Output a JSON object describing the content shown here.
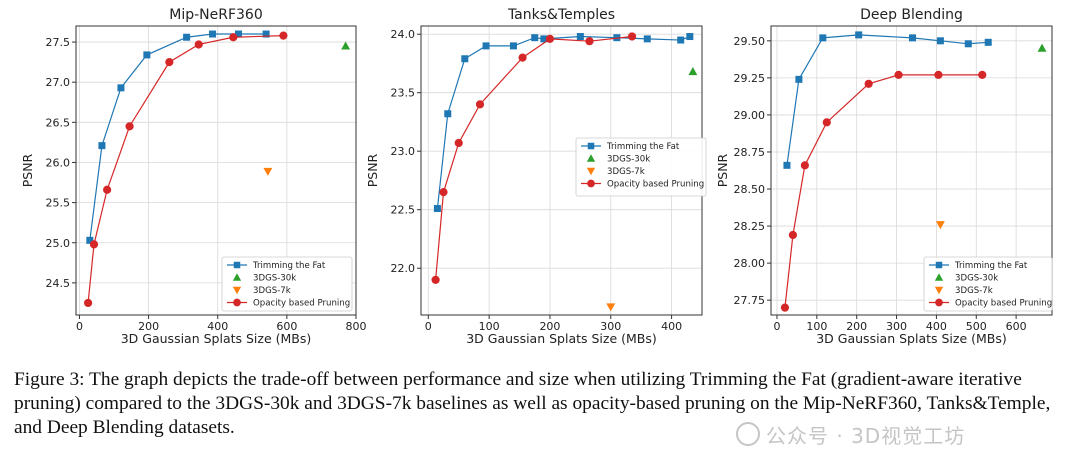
{
  "figure_caption": "Figure 3: The graph depicts the trade-off between performance and size when utilizing Trimming the Fat (gradient-aware iterative pruning) compared to the 3DGS-30k and 3DGS-7k baselines as well as opacity-based pruning on the Mip-NeRF360, Tanks&Temple, and Deep Blending datasets.",
  "watermark_text": "公众号 · 3D视觉工坊",
  "series_styles": {
    "Trimming the Fat": {
      "color": "#1f77b4",
      "marker": "square",
      "line": true
    },
    "3DGS-30k": {
      "color": "#2ca02c",
      "marker": "triangle-up",
      "line": false
    },
    "3DGS-7k": {
      "color": "#ff7f0e",
      "marker": "triangle-down",
      "line": false
    },
    "Opacity based Pruning": {
      "color": "#d62728",
      "marker": "circle",
      "line": true
    }
  },
  "chart_data": [
    {
      "type": "line",
      "title": "Mip-NeRF360",
      "xlabel": "3D Gaussian Splats Size (MBs)",
      "ylabel": "PSNR",
      "xlim": [
        -10,
        800
      ],
      "ylim": [
        24.1,
        27.7
      ],
      "xticks": [
        0,
        200,
        400,
        600,
        800
      ],
      "yticks": [
        24.5,
        25.0,
        25.5,
        26.0,
        26.5,
        27.0,
        27.5
      ],
      "ytick_labels": [
        "24.5",
        "25.0",
        "25.5",
        "26.0",
        "26.5",
        "27.0",
        "27.5"
      ],
      "grid": true,
      "legend_position": "bottom-right",
      "series": [
        {
          "name": "Trimming the Fat",
          "x": [
            30,
            65,
            120,
            195,
            310,
            385,
            460,
            540
          ],
          "y": [
            25.03,
            26.21,
            26.93,
            27.34,
            27.56,
            27.6,
            27.6,
            27.6
          ]
        },
        {
          "name": "3DGS-30k",
          "x": [
            770
          ],
          "y": [
            27.45
          ]
        },
        {
          "name": "3DGS-7k",
          "x": [
            545
          ],
          "y": [
            25.89
          ]
        },
        {
          "name": "Opacity based Pruning",
          "x": [
            25,
            42,
            80,
            145,
            260,
            345,
            445,
            590
          ],
          "y": [
            24.25,
            24.98,
            25.66,
            26.45,
            27.25,
            27.47,
            27.56,
            27.58
          ]
        }
      ]
    },
    {
      "type": "line",
      "title": "Tanks&Temples",
      "xlabel": "3D Gaussian Splats Size (MBs)",
      "ylabel": "PSNR",
      "xlim": [
        -12,
        450
      ],
      "ylim": [
        21.6,
        24.07
      ],
      "xticks": [
        0,
        100,
        200,
        300,
        400
      ],
      "yticks": [
        22.0,
        22.5,
        23.0,
        23.5,
        24.0
      ],
      "ytick_labels": [
        "22.0",
        "22.5",
        "23.0",
        "23.5",
        "24.0"
      ],
      "grid": true,
      "legend_position": "center-right",
      "series": [
        {
          "name": "Trimming the Fat",
          "x": [
            15,
            32,
            60,
            95,
            140,
            175,
            190,
            250,
            310,
            360,
            415,
            430
          ],
          "y": [
            22.51,
            23.32,
            23.79,
            23.9,
            23.9,
            23.97,
            23.96,
            23.98,
            23.97,
            23.96,
            23.95,
            23.98
          ]
        },
        {
          "name": "3DGS-30k",
          "x": [
            435
          ],
          "y": [
            23.68
          ]
        },
        {
          "name": "3DGS-7k",
          "x": [
            300
          ],
          "y": [
            21.67
          ]
        },
        {
          "name": "Opacity based Pruning",
          "x": [
            12,
            25,
            50,
            85,
            155,
            200,
            265,
            335
          ],
          "y": [
            21.9,
            22.65,
            23.07,
            23.4,
            23.8,
            23.96,
            23.94,
            23.98
          ]
        }
      ]
    },
    {
      "type": "line",
      "title": "Deep Blending",
      "xlabel": "3D Gaussian Splats Size (MBs)",
      "ylabel": "PSNR",
      "xlim": [
        -15,
        690
      ],
      "ylim": [
        27.65,
        29.6
      ],
      "xticks": [
        0,
        100,
        200,
        300,
        400,
        500,
        600
      ],
      "yticks": [
        27.75,
        28.0,
        28.25,
        28.5,
        28.75,
        29.0,
        29.25,
        29.5
      ],
      "ytick_labels": [
        "27.75",
        "28.00",
        "28.25",
        "28.50",
        "28.75",
        "29.00",
        "29.25",
        "29.50"
      ],
      "grid": true,
      "legend_position": "bottom-right",
      "series": [
        {
          "name": "Trimming the Fat",
          "x": [
            25,
            55,
            115,
            205,
            340,
            410,
            480,
            530
          ],
          "y": [
            28.66,
            29.24,
            29.52,
            29.54,
            29.52,
            29.5,
            29.48,
            29.49
          ]
        },
        {
          "name": "3DGS-30k",
          "x": [
            665
          ],
          "y": [
            29.45
          ]
        },
        {
          "name": "3DGS-7k",
          "x": [
            410
          ],
          "y": [
            28.26
          ]
        },
        {
          "name": "Opacity based Pruning",
          "x": [
            20,
            40,
            70,
            125,
            230,
            305,
            405,
            515
          ],
          "y": [
            27.7,
            28.19,
            28.66,
            28.95,
            29.21,
            29.27,
            29.27,
            29.27
          ]
        }
      ]
    }
  ]
}
